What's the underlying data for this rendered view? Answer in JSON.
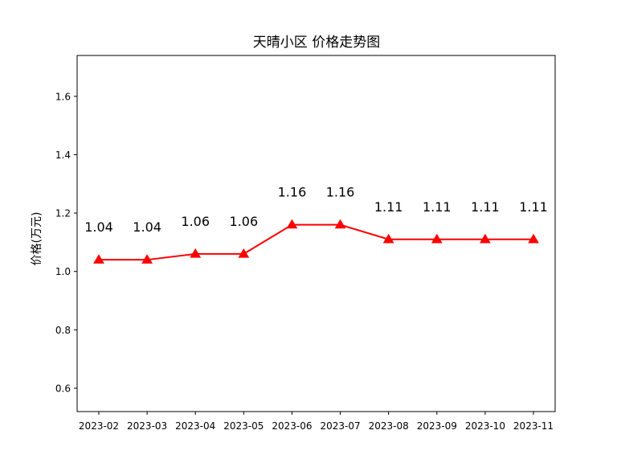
{
  "chart_data": {
    "type": "line",
    "title": "天晴小区 价格走势图",
    "xlabel": "",
    "ylabel": "价格(万元)",
    "categories": [
      "2023-02",
      "2023-03",
      "2023-04",
      "2023-05",
      "2023-06",
      "2023-07",
      "2023-08",
      "2023-09",
      "2023-10",
      "2023-11"
    ],
    "values": [
      1.04,
      1.04,
      1.06,
      1.06,
      1.16,
      1.16,
      1.11,
      1.11,
      1.11,
      1.11
    ],
    "value_labels": [
      "1.04",
      "1.04",
      "1.06",
      "1.06",
      "1.16",
      "1.16",
      "1.11",
      "1.11",
      "1.11",
      "1.11"
    ],
    "ylim": [
      0.52,
      1.74
    ],
    "yticks": [
      0.6,
      0.8,
      1.0,
      1.2,
      1.4,
      1.6
    ],
    "ytick_labels": [
      "0.6",
      "0.8",
      "1.0",
      "1.2",
      "1.4",
      "1.6"
    ],
    "grid": false,
    "marker": "triangle",
    "color": "#ff0000"
  }
}
